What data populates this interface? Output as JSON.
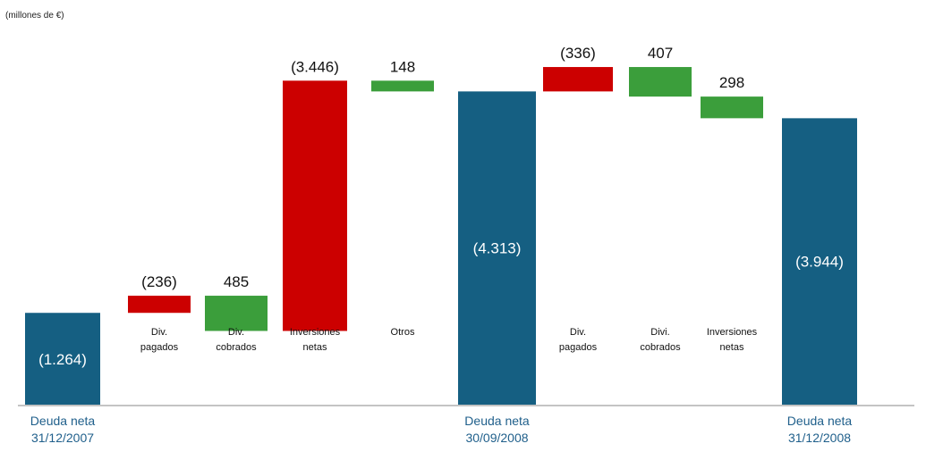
{
  "chart_data": {
    "type": "bar",
    "subtitle": "(millones de €)",
    "categories": [
      "Deuda neta 31/12/2007",
      "Div. pagados",
      "Div. cobrados",
      "Inversiones netas",
      "Otros",
      "Deuda neta 30/09/2008",
      "Div. pagados",
      "Divi. cobrados",
      "Inversiones netas",
      "Deuda neta 31/12/2008"
    ],
    "bars": [
      {
        "kind": "total",
        "value": -1264,
        "start": 0,
        "end": 1264,
        "label": "(1.264)",
        "category": [
          "Deuda neta",
          "31/12/2007"
        ]
      },
      {
        "kind": "negative",
        "value": -236,
        "start": 1264,
        "end": 1500,
        "label": "(236)",
        "category": [
          "Div.",
          "pagados"
        ]
      },
      {
        "kind": "positive",
        "value": 485,
        "start": 1015,
        "end": 1500,
        "label": "485",
        "category": [
          "Div.",
          "cobrados"
        ]
      },
      {
        "kind": "negative",
        "value": -3446,
        "start": 1015,
        "end": 4461,
        "label": "(3.446)",
        "category": [
          "Inversiones",
          "netas"
        ]
      },
      {
        "kind": "positive",
        "value": 148,
        "start": 4313,
        "end": 4461,
        "label": "148",
        "category": [
          "Otros"
        ]
      },
      {
        "kind": "total",
        "value": -4313,
        "start": 0,
        "end": 4313,
        "label": "(4.313)",
        "category": [
          "Deuda neta",
          "30/09/2008"
        ]
      },
      {
        "kind": "negative",
        "value": -336,
        "start": 4313,
        "end": 4649,
        "label": "(336)",
        "category": [
          "Div.",
          "pagados"
        ]
      },
      {
        "kind": "positive",
        "value": 407,
        "start": 4242,
        "end": 4649,
        "label": "407",
        "category": [
          "Divi.",
          "cobrados"
        ]
      },
      {
        "kind": "positive",
        "value": 298,
        "start": 3944,
        "end": 4242,
        "label": "298",
        "category": [
          "Inversiones",
          "netas"
        ]
      },
      {
        "kind": "total",
        "value": -3944,
        "start": 0,
        "end": 3944,
        "label": "(3.944)",
        "category": [
          "Deuda neta",
          "31/12/2008"
        ]
      }
    ],
    "colors": {
      "total": "#155f82",
      "negative": "#cc0000",
      "positive": "#3b9e3b",
      "axis": "#888888",
      "total_label": "#1f5f8b"
    },
    "grid": false,
    "legend": "none"
  }
}
